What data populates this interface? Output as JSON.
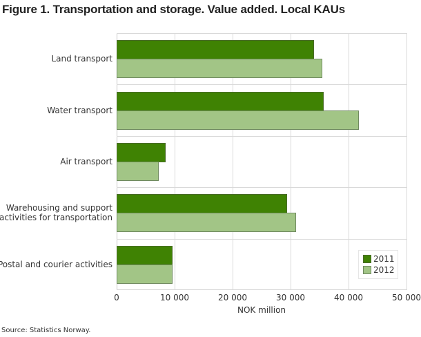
{
  "title": "Figure 1.  Transportation and storage. Value added. Local KAUs",
  "source": "Source: Statistics Norway.",
  "colors": {
    "2011": "#3f8203",
    "2012": "#a2c586"
  },
  "chart_data": {
    "type": "bar",
    "orientation": "horizontal",
    "title": "Figure 1.  Transportation and storage. Value added. Local KAUs",
    "xlabel": "NOK million",
    "ylabel": "",
    "xlim": [
      0,
      50000
    ],
    "x_ticks": [
      "0",
      "10 000",
      "20 000",
      "30 000",
      "40 000",
      "50 000"
    ],
    "grid": true,
    "legend_position": "bottom-right inside",
    "categories": [
      "Land transport",
      "Water transport",
      "Air transport",
      "Warehousing and support activities for transportation",
      "Postal and courier activities"
    ],
    "series": [
      {
        "name": "2011",
        "color": "#3f8203",
        "values": [
          34100,
          35700,
          8500,
          29400,
          9600
        ]
      },
      {
        "name": "2012",
        "color": "#a2c586",
        "values": [
          35500,
          41800,
          7300,
          31000,
          9600
        ]
      }
    ]
  },
  "category_labels": [
    [
      "Land transport"
    ],
    [
      "Water transport"
    ],
    [
      "Air transport"
    ],
    [
      "Warehousing and support",
      "activities for transportation"
    ],
    [
      "Postal and courier activities"
    ]
  ],
  "legend": [
    {
      "label": "2011"
    },
    {
      "label": "2012"
    }
  ]
}
